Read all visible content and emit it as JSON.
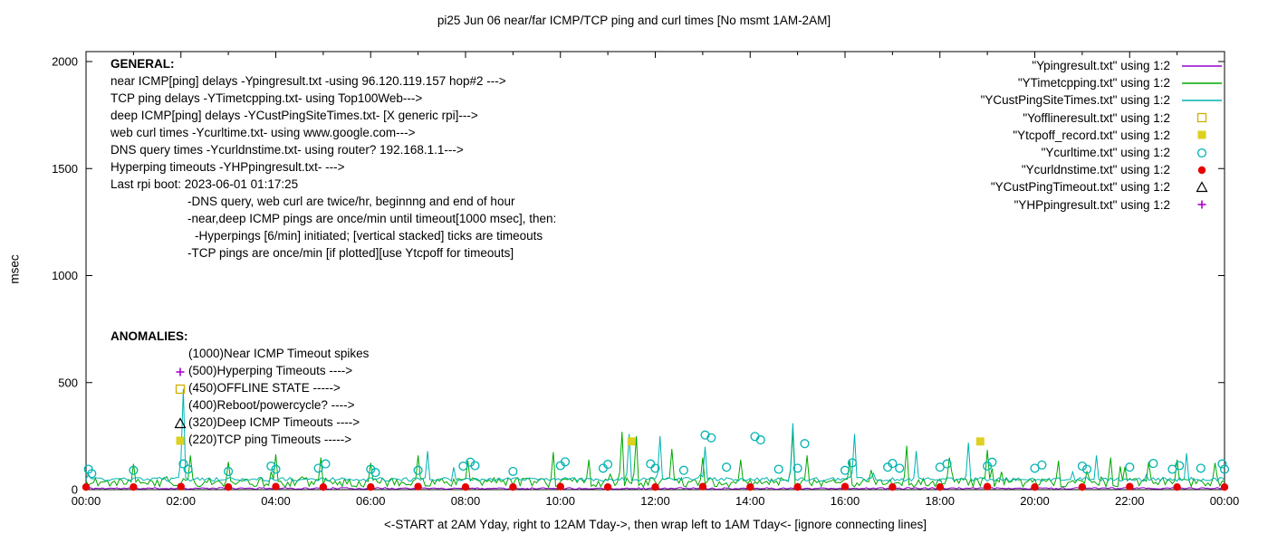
{
  "title": "pi25 Jun 06  near/far ICMP/TCP ping and curl times [No msmt 1AM-2AM]",
  "axes": {
    "ylabel": "msec",
    "x_note": "<-START at 2AM Yday, right to 12AM Tday->, then wrap left to 1AM Tday<- [ignore connecting lines]"
  },
  "general": {
    "heading": "GENERAL:",
    "lines": [
      {
        "text": "near ICMP[ping] delays -Ypingresult.txt -using 96.120.119.157 hop#2 --->",
        "indent": 0
      },
      {
        "text": "TCP ping delays -YTimetcpping.txt- using Top100Web--->",
        "indent": 0
      },
      {
        "text": "deep ICMP[ping] delays -YCustPingSiteTimes.txt- [X generic rpi]--->",
        "indent": 0
      },
      {
        "text": "web curl times -Ycurltime.txt- using www.google.com--->",
        "indent": 0
      },
      {
        "text": "DNS query times -Ycurldnstime.txt- using router? 192.168.1.1--->",
        "indent": 0
      },
      {
        "text": "Hyperping timeouts -YHPpingresult.txt- --->",
        "indent": 0
      },
      {
        "text": "Last rpi boot: 2023-06-01 01:17:25",
        "indent": 0
      },
      {
        "text": "-DNS query, web curl are twice/hr, beginnng and end of hour",
        "indent": 85
      },
      {
        "text": "-near,deep ICMP pings are once/min until timeout[1000 msec], then:",
        "indent": 85
      },
      {
        "text": "-Hyperpings [6/min] initiated; [vertical stacked] ticks are timeouts",
        "indent": 93
      },
      {
        "text": "-TCP pings are once/min [if plotted][use Ytcpoff for timeouts]",
        "indent": 85
      }
    ]
  },
  "anomalies": {
    "heading": "ANOMALIES:",
    "rows": [
      {
        "text": "(1000)Near ICMP Timeout spikes",
        "marker": "",
        "color": ""
      },
      {
        "text": "(500)Hyperping Timeouts ---->",
        "marker": "plus",
        "color": "#aa00cc"
      },
      {
        "text": "(450)OFFLINE STATE ----->",
        "marker": "square-open",
        "color": "#cfae00"
      },
      {
        "text": "(400)Reboot/powercycle? ---->",
        "marker": "",
        "color": ""
      },
      {
        "text": "(320)Deep ICMP Timeouts ---->",
        "marker": "triangle-open",
        "color": "#000000"
      },
      {
        "text": "(220)TCP ping Timeouts ----->",
        "marker": "square-filled",
        "color": "#ddd020"
      }
    ]
  },
  "chart_data": {
    "type": "line",
    "title": "pi25 Jun 06  near/far ICMP/TCP ping and curl times [No msmt 1AM-2AM]",
    "xlabel": "<-START at 2AM Yday, right to 12AM Tday->, then wrap left to 1AM Tday<- [ignore connecting lines]",
    "ylabel": "msec",
    "ylim": [
      0,
      2000
    ],
    "xlim_hours": [
      0,
      24
    ],
    "grid": false,
    "legend_position": "top-right",
    "y_ticks": [
      0,
      500,
      1000,
      1500,
      2000
    ],
    "x_ticks": [
      "00:00",
      "02:00",
      "04:00",
      "06:00",
      "08:00",
      "10:00",
      "12:00",
      "14:00",
      "16:00",
      "18:00",
      "20:00",
      "22:00",
      "00:00"
    ],
    "series": [
      {
        "name": "Ypingresult",
        "legend": "\"Ypingresult.txt\" using 1:2",
        "style": "line",
        "color": "#9400d3",
        "baseline": 6,
        "noise": 4,
        "seed": 11,
        "spike_prob": 0,
        "spike_amp": 0,
        "spikes": []
      },
      {
        "name": "YTimetcpping",
        "legend": "\"YTimetcpping.txt\" using 1:2",
        "style": "line",
        "color": "#00a800",
        "baseline": 34,
        "noise": 22,
        "seed": 22,
        "spike_prob": 0.05,
        "spike_amp": 70,
        "spikes": [
          [
            1.0,
            120
          ],
          [
            2.2,
            160
          ],
          [
            3.0,
            130
          ],
          [
            4.0,
            165
          ],
          [
            4.95,
            150
          ],
          [
            6.0,
            125
          ],
          [
            7.0,
            160
          ],
          [
            8.05,
            135
          ],
          [
            9.85,
            175
          ],
          [
            10.6,
            140
          ],
          [
            11.3,
            270
          ],
          [
            11.6,
            250
          ],
          [
            12.35,
            190
          ],
          [
            13.0,
            150
          ],
          [
            13.8,
            140
          ],
          [
            14.9,
            280
          ],
          [
            15.2,
            160
          ],
          [
            16.1,
            135
          ],
          [
            17.3,
            205
          ],
          [
            18.2,
            150
          ],
          [
            19.0,
            185
          ],
          [
            20.5,
            135
          ],
          [
            21.6,
            150
          ],
          [
            22.4,
            130
          ],
          [
            23.0,
            140
          ],
          [
            23.8,
            125
          ]
        ]
      },
      {
        "name": "YCustPingSiteTimes",
        "legend": "\"YCustPingSiteTimes.txt\" using 1:2",
        "style": "line",
        "color": "#00b2b2",
        "baseline": 48,
        "noise": 9,
        "seed": 33,
        "spike_prob": 0.02,
        "spike_amp": 50,
        "spikes": [
          [
            2.05,
            470
          ],
          [
            7.2,
            180
          ],
          [
            11.45,
            260
          ],
          [
            12.1,
            250
          ],
          [
            13.05,
            200
          ],
          [
            14.9,
            310
          ],
          [
            16.2,
            260
          ],
          [
            17.5,
            180
          ],
          [
            18.6,
            220
          ],
          [
            21.3,
            160
          ],
          [
            23.2,
            170
          ]
        ]
      },
      {
        "name": "Yofflineresult",
        "legend": "\"Yofflineresult.txt\" using 1:2",
        "style": "points",
        "marker": "square-open",
        "color": "#cfae00",
        "points": []
      },
      {
        "name": "Ytcpoff_record",
        "legend": "\"Ytcpoff_record.txt\" using 1:2",
        "style": "points",
        "marker": "square-filled",
        "color": "#ddd020",
        "points": [
          [
            11.5,
            225
          ],
          [
            18.85,
            225
          ]
        ]
      },
      {
        "name": "Ycurltime",
        "legend": "\"Ycurltime.txt\" using 1:2",
        "style": "points",
        "marker": "circle-open",
        "color": "#00b2b2",
        "points": [
          [
            0.05,
            95
          ],
          [
            0.12,
            75
          ],
          [
            1.0,
            90
          ],
          [
            2.05,
            120
          ],
          [
            2.15,
            95
          ],
          [
            3.0,
            85
          ],
          [
            3.9,
            110
          ],
          [
            4.0,
            95
          ],
          [
            4.9,
            100
          ],
          [
            5.05,
            120
          ],
          [
            6.0,
            95
          ],
          [
            6.1,
            80
          ],
          [
            7.0,
            90
          ],
          [
            7.95,
            110
          ],
          [
            8.1,
            128
          ],
          [
            8.2,
            112
          ],
          [
            9.0,
            85
          ],
          [
            10.0,
            112
          ],
          [
            10.1,
            130
          ],
          [
            10.9,
            100
          ],
          [
            11.0,
            118
          ],
          [
            11.9,
            120
          ],
          [
            12.0,
            100
          ],
          [
            12.6,
            90
          ],
          [
            13.05,
            255
          ],
          [
            13.18,
            242
          ],
          [
            13.5,
            105
          ],
          [
            14.1,
            248
          ],
          [
            14.22,
            232
          ],
          [
            14.6,
            95
          ],
          [
            15.0,
            100
          ],
          [
            15.15,
            215
          ],
          [
            16.0,
            90
          ],
          [
            16.15,
            125
          ],
          [
            16.9,
            105
          ],
          [
            17.0,
            122
          ],
          [
            17.15,
            100
          ],
          [
            18.0,
            105
          ],
          [
            18.15,
            120
          ],
          [
            19.0,
            110
          ],
          [
            19.1,
            128
          ],
          [
            20.0,
            100
          ],
          [
            20.15,
            115
          ],
          [
            21.0,
            110
          ],
          [
            21.1,
            95
          ],
          [
            22.0,
            105
          ],
          [
            22.5,
            122
          ],
          [
            22.9,
            95
          ],
          [
            23.05,
            112
          ],
          [
            23.5,
            100
          ],
          [
            23.95,
            120
          ],
          [
            24.0,
            95
          ]
        ]
      },
      {
        "name": "Ycurldnstime",
        "legend": "\"Ycurldnstime.txt\" using 1:2",
        "style": "points",
        "marker": "circle-filled",
        "color": "#e60000",
        "points": [
          [
            0,
            12
          ],
          [
            1,
            12
          ],
          [
            2,
            14
          ],
          [
            3,
            12
          ],
          [
            4,
            14
          ],
          [
            5,
            12
          ],
          [
            6,
            12
          ],
          [
            7,
            14
          ],
          [
            8,
            12
          ],
          [
            9,
            12
          ],
          [
            10,
            14
          ],
          [
            11,
            12
          ],
          [
            12,
            12
          ],
          [
            13,
            14
          ],
          [
            14,
            12
          ],
          [
            15,
            12
          ],
          [
            16,
            14
          ],
          [
            17,
            12
          ],
          [
            18,
            12
          ],
          [
            19,
            14
          ],
          [
            20,
            12
          ],
          [
            21,
            12
          ],
          [
            22,
            14
          ],
          [
            23,
            12
          ],
          [
            24,
            12
          ]
        ]
      },
      {
        "name": "YCustPingTimeout",
        "legend": "\"YCustPingTimeout.txt\" using 1:2",
        "style": "points",
        "marker": "triangle-open",
        "color": "#000000",
        "points": []
      },
      {
        "name": "YHPpingresult",
        "legend": "\"YHPpingresult.txt\" using 1:2",
        "style": "points",
        "marker": "plus",
        "color": "#aa00cc",
        "points": []
      }
    ]
  }
}
